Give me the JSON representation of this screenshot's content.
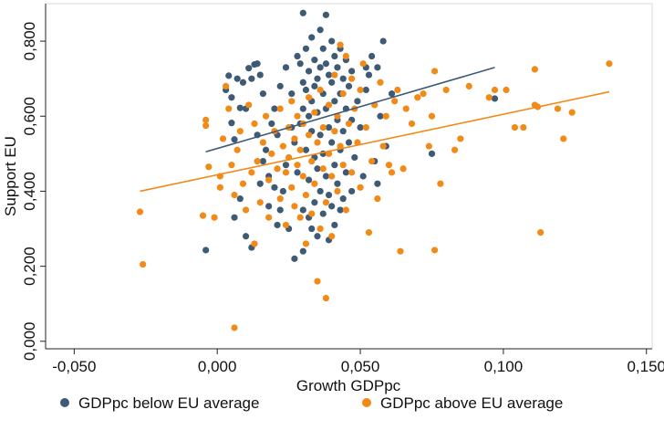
{
  "chart_data": {
    "type": "scatter",
    "title": "",
    "xlabel": "Growth GDPpc",
    "ylabel": "Support EU",
    "xlim": [
      -0.06,
      0.152
    ],
    "ylim": [
      -0.02,
      0.9
    ],
    "x_ticks": [
      -0.05,
      0.0,
      0.05,
      0.1,
      0.15
    ],
    "x_tick_labels": [
      "-0,050",
      "0,000",
      "0,050",
      "0,100",
      "0,150"
    ],
    "y_ticks": [
      0.0,
      0.2,
      0.4,
      0.6,
      0.8
    ],
    "y_tick_labels": [
      "0,000",
      "0,200",
      "0,400",
      "0,600",
      "0,800"
    ],
    "grid": false,
    "legend_position": "bottom",
    "series": [
      {
        "name": "GDPpc below EU average",
        "color": "#3e5a74",
        "fit_line": {
          "x": [
            -0.004,
            0.097
          ],
          "y": [
            0.505,
            0.73
          ]
        },
        "points": [
          [
            -0.004,
            0.243
          ],
          [
            0.003,
            0.67
          ],
          [
            0.004,
            0.708
          ],
          [
            0.005,
            0.65
          ],
          [
            0.005,
            0.582
          ],
          [
            0.006,
            0.538
          ],
          [
            0.007,
            0.7
          ],
          [
            0.008,
            0.622
          ],
          [
            0.009,
            0.69
          ],
          [
            0.01,
            0.62
          ],
          [
            0.011,
            0.728
          ],
          [
            0.012,
            0.7
          ],
          [
            0.013,
            0.738
          ],
          [
            0.014,
            0.74
          ],
          [
            0.015,
            0.71
          ],
          [
            0.016,
            0.66
          ],
          [
            0.006,
            0.33
          ],
          [
            0.008,
            0.38
          ],
          [
            0.01,
            0.28
          ],
          [
            0.012,
            0.25
          ],
          [
            0.015,
            0.42
          ],
          [
            0.016,
            0.48
          ],
          [
            0.017,
            0.51
          ],
          [
            0.018,
            0.44
          ],
          [
            0.019,
            0.58
          ],
          [
            0.02,
            0.62
          ],
          [
            0.021,
            0.55
          ],
          [
            0.022,
            0.68
          ],
          [
            0.022,
            0.35
          ],
          [
            0.023,
            0.4
          ],
          [
            0.024,
            0.47
          ],
          [
            0.024,
            0.73
          ],
          [
            0.025,
            0.3
          ],
          [
            0.026,
            0.66
          ],
          [
            0.027,
            0.53
          ],
          [
            0.027,
            0.22
          ],
          [
            0.028,
            0.76
          ],
          [
            0.028,
            0.45
          ],
          [
            0.029,
            0.74
          ],
          [
            0.029,
            0.58
          ],
          [
            0.03,
            0.875
          ],
          [
            0.03,
            0.69
          ],
          [
            0.03,
            0.62
          ],
          [
            0.03,
            0.35
          ],
          [
            0.03,
            0.24
          ],
          [
            0.031,
            0.78
          ],
          [
            0.031,
            0.67
          ],
          [
            0.031,
            0.51
          ],
          [
            0.032,
            0.72
          ],
          [
            0.032,
            0.6
          ],
          [
            0.032,
            0.43
          ],
          [
            0.032,
            0.33
          ],
          [
            0.033,
            0.81
          ],
          [
            0.033,
            0.64
          ],
          [
            0.033,
            0.56
          ],
          [
            0.033,
            0.3
          ],
          [
            0.034,
            0.75
          ],
          [
            0.034,
            0.68
          ],
          [
            0.034,
            0.49
          ],
          [
            0.034,
            0.37
          ],
          [
            0.035,
            0.7
          ],
          [
            0.035,
            0.61
          ],
          [
            0.035,
            0.46
          ],
          [
            0.035,
            0.28
          ],
          [
            0.036,
            0.83
          ],
          [
            0.036,
            0.73
          ],
          [
            0.036,
            0.55
          ],
          [
            0.036,
            0.4
          ],
          [
            0.037,
            0.78
          ],
          [
            0.037,
            0.66
          ],
          [
            0.037,
            0.5
          ],
          [
            0.037,
            0.34
          ],
          [
            0.038,
            0.87
          ],
          [
            0.038,
            0.74
          ],
          [
            0.038,
            0.62
          ],
          [
            0.038,
            0.44
          ],
          [
            0.039,
            0.71
          ],
          [
            0.039,
            0.57
          ],
          [
            0.039,
            0.39
          ],
          [
            0.039,
            0.27
          ],
          [
            0.04,
            0.8
          ],
          [
            0.04,
            0.69
          ],
          [
            0.04,
            0.53
          ],
          [
            0.04,
            0.36
          ],
          [
            0.041,
            0.76
          ],
          [
            0.041,
            0.64
          ],
          [
            0.041,
            0.47
          ],
          [
            0.041,
            0.31
          ],
          [
            0.042,
            0.73
          ],
          [
            0.042,
            0.59
          ],
          [
            0.042,
            0.42
          ],
          [
            0.043,
            0.78
          ],
          [
            0.043,
            0.66
          ],
          [
            0.043,
            0.51
          ],
          [
            0.044,
            0.7
          ],
          [
            0.044,
            0.56
          ],
          [
            0.044,
            0.38
          ],
          [
            0.045,
            0.75
          ],
          [
            0.045,
            0.62
          ],
          [
            0.045,
            0.45
          ],
          [
            0.046,
            0.68
          ],
          [
            0.046,
            0.53
          ],
          [
            0.047,
            0.72
          ],
          [
            0.047,
            0.59
          ],
          [
            0.048,
            0.49
          ],
          [
            0.049,
            0.64
          ],
          [
            0.05,
            0.57
          ],
          [
            0.051,
            0.44
          ],
          [
            0.052,
            0.67
          ],
          [
            0.053,
            0.71
          ],
          [
            0.054,
            0.76
          ],
          [
            0.055,
            0.48
          ],
          [
            0.056,
            0.73
          ],
          [
            0.056,
            0.42
          ],
          [
            0.057,
            0.6
          ],
          [
            0.058,
            0.8
          ],
          [
            0.059,
            0.52
          ],
          [
            0.061,
            0.66
          ],
          [
            0.075,
            0.5
          ],
          [
            0.097,
            0.647
          ],
          [
            0.014,
            0.55
          ],
          [
            0.018,
            0.36
          ],
          [
            0.02,
            0.41
          ],
          [
            0.021,
            0.31
          ],
          [
            0.026,
            0.57
          ],
          [
            0.043,
            0.35
          ],
          [
            0.047,
            0.4
          ],
          [
            0.052,
            0.73
          ]
        ]
      },
      {
        "name": "GDPpc above EU average",
        "color": "#f28a18",
        "fit_line": {
          "x": [
            -0.027,
            0.137
          ],
          "y": [
            0.4,
            0.665
          ]
        },
        "points": [
          [
            -0.027,
            0.345
          ],
          [
            -0.026,
            0.205
          ],
          [
            -0.005,
            0.335
          ],
          [
            -0.004,
            0.59
          ],
          [
            -0.004,
            0.575
          ],
          [
            -0.003,
            0.465
          ],
          [
            -0.001,
            0.33
          ],
          [
            0.001,
            0.41
          ],
          [
            0.001,
            0.44
          ],
          [
            0.002,
            0.54
          ],
          [
            0.003,
            0.68
          ],
          [
            0.004,
            0.62
          ],
          [
            0.005,
            0.47
          ],
          [
            0.006,
            0.036
          ],
          [
            0.006,
            0.39
          ],
          [
            0.007,
            0.51
          ],
          [
            0.008,
            0.56
          ],
          [
            0.009,
            0.42
          ],
          [
            0.01,
            0.35
          ],
          [
            0.011,
            0.63
          ],
          [
            0.012,
            0.45
          ],
          [
            0.013,
            0.26
          ],
          [
            0.013,
            0.58
          ],
          [
            0.014,
            0.48
          ],
          [
            0.015,
            0.37
          ],
          [
            0.016,
            0.53
          ],
          [
            0.017,
            0.6
          ],
          [
            0.018,
            0.43
          ],
          [
            0.018,
            0.33
          ],
          [
            0.019,
            0.5
          ],
          [
            0.02,
            0.56
          ],
          [
            0.021,
            0.46
          ],
          [
            0.022,
            0.62
          ],
          [
            0.022,
            0.38
          ],
          [
            0.023,
            0.52
          ],
          [
            0.024,
            0.45
          ],
          [
            0.024,
            0.31
          ],
          [
            0.025,
            0.57
          ],
          [
            0.025,
            0.49
          ],
          [
            0.026,
            0.64
          ],
          [
            0.026,
            0.41
          ],
          [
            0.027,
            0.54
          ],
          [
            0.027,
            0.36
          ],
          [
            0.028,
            0.47
          ],
          [
            0.028,
            0.6
          ],
          [
            0.029,
            0.33
          ],
          [
            0.029,
            0.51
          ],
          [
            0.03,
            0.44
          ],
          [
            0.03,
            0.58
          ],
          [
            0.031,
            0.39
          ],
          [
            0.031,
            0.26
          ],
          [
            0.032,
            0.65
          ],
          [
            0.032,
            0.55
          ],
          [
            0.033,
            0.48
          ],
          [
            0.033,
            0.34
          ],
          [
            0.034,
            0.61
          ],
          [
            0.034,
            0.42
          ],
          [
            0.035,
            0.16
          ],
          [
            0.035,
            0.53
          ],
          [
            0.036,
            0.3
          ],
          [
            0.036,
            0.67
          ],
          [
            0.037,
            0.46
          ],
          [
            0.037,
            0.57
          ],
          [
            0.038,
            0.115
          ],
          [
            0.038,
            0.37
          ],
          [
            0.039,
            0.63
          ],
          [
            0.039,
            0.5
          ],
          [
            0.04,
            0.44
          ],
          [
            0.04,
            0.28
          ],
          [
            0.041,
            0.71
          ],
          [
            0.041,
            0.56
          ],
          [
            0.042,
            0.4
          ],
          [
            0.042,
            0.6
          ],
          [
            0.043,
            0.79
          ],
          [
            0.043,
            0.52
          ],
          [
            0.044,
            0.47
          ],
          [
            0.044,
            0.66
          ],
          [
            0.045,
            0.76
          ],
          [
            0.045,
            0.35
          ],
          [
            0.046,
            0.58
          ],
          [
            0.047,
            0.45
          ],
          [
            0.047,
            0.7
          ],
          [
            0.048,
            0.62
          ],
          [
            0.049,
            0.53
          ],
          [
            0.05,
            0.41
          ],
          [
            0.05,
            0.67
          ],
          [
            0.051,
            0.74
          ],
          [
            0.052,
            0.57
          ],
          [
            0.053,
            0.29
          ],
          [
            0.054,
            0.48
          ],
          [
            0.055,
            0.63
          ],
          [
            0.056,
            0.38
          ],
          [
            0.057,
            0.69
          ],
          [
            0.058,
            0.52
          ],
          [
            0.059,
            0.6
          ],
          [
            0.06,
            0.47
          ],
          [
            0.061,
            0.45
          ],
          [
            0.062,
            0.64
          ],
          [
            0.063,
            0.67
          ],
          [
            0.064,
            0.24
          ],
          [
            0.065,
            0.46
          ],
          [
            0.066,
            0.62
          ],
          [
            0.068,
            0.58
          ],
          [
            0.07,
            0.65
          ],
          [
            0.072,
            0.66
          ],
          [
            0.074,
            0.52
          ],
          [
            0.075,
            0.6
          ],
          [
            0.076,
            0.243
          ],
          [
            0.076,
            0.72
          ],
          [
            0.078,
            0.42
          ],
          [
            0.08,
            0.67
          ],
          [
            0.083,
            0.51
          ],
          [
            0.085,
            0.54
          ],
          [
            0.088,
            0.68
          ],
          [
            0.095,
            0.65
          ],
          [
            0.097,
            0.67
          ],
          [
            0.101,
            0.67
          ],
          [
            0.104,
            0.57
          ],
          [
            0.107,
            0.57
          ],
          [
            0.111,
            0.725
          ],
          [
            0.111,
            0.63
          ],
          [
            0.112,
            0.625
          ],
          [
            0.113,
            0.29
          ],
          [
            0.119,
            0.62
          ],
          [
            0.121,
            0.54
          ],
          [
            0.124,
            0.61
          ],
          [
            0.137,
            0.74
          ]
        ]
      }
    ]
  }
}
